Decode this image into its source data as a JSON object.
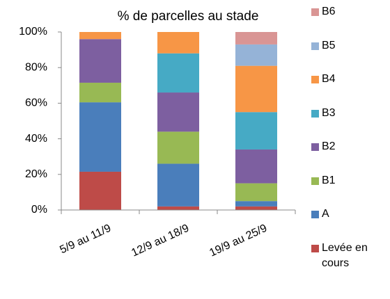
{
  "chart_data": {
    "type": "stacked_bar",
    "title": "% de parcelles au stade",
    "categories": [
      "5/9 au 11/9",
      "12/9 au 18/9",
      "19/9 au 25/9"
    ],
    "series": [
      {
        "name": "Levée en cours",
        "color": "#be4b48",
        "values": [
          21.5,
          2,
          2
        ]
      },
      {
        "name": "A",
        "color": "#4a7ebb",
        "values": [
          39,
          24,
          3
        ]
      },
      {
        "name": "B1",
        "color": "#98b954",
        "values": [
          11,
          18,
          10
        ]
      },
      {
        "name": "B2",
        "color": "#7d5fa0",
        "values": [
          24.5,
          22,
          19
        ]
      },
      {
        "name": "B3",
        "color": "#46aac5",
        "values": [
          0,
          22,
          21
        ]
      },
      {
        "name": "B4",
        "color": "#f79646",
        "values": [
          4,
          12,
          26
        ]
      },
      {
        "name": "B5",
        "color": "#95b3d7",
        "values": [
          0,
          0,
          12
        ]
      },
      {
        "name": "B6",
        "color": "#d99594",
        "values": [
          0,
          0,
          7
        ]
      }
    ],
    "ylim": [
      0,
      100
    ],
    "yticks": [
      {
        "value": 0,
        "label": "0%"
      },
      {
        "value": 20,
        "label": "20%"
      },
      {
        "value": 40,
        "label": "40%"
      },
      {
        "value": 60,
        "label": "60%"
      },
      {
        "value": 80,
        "label": "80%"
      },
      {
        "value": 100,
        "label": "100%"
      }
    ],
    "legend": "right"
  }
}
